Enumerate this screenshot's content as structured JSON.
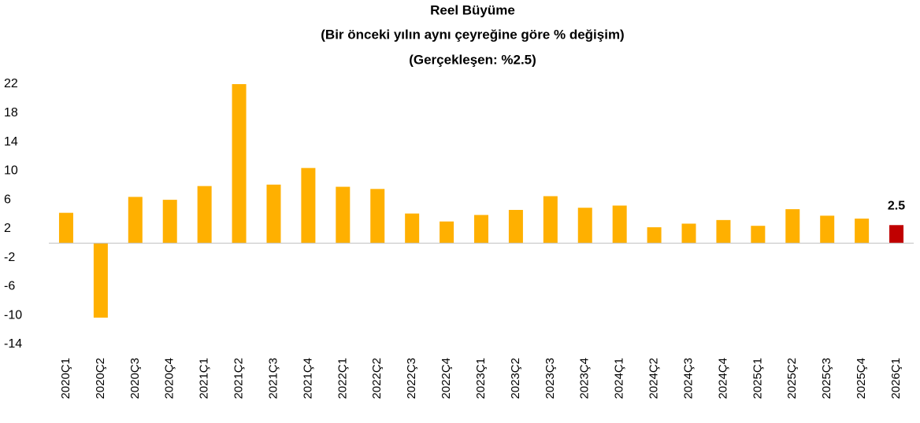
{
  "chart_data": {
    "type": "bar",
    "title": [
      "Reel Büyüme",
      "(Bir önceki yılın aynı çeyreğine göre % değişim)",
      "(Gerçekleşen: %2.5)"
    ],
    "categories": [
      "2020Ç1",
      "2020Ç2",
      "2020Ç3",
      "2020Ç4",
      "2021Ç1",
      "2021Ç2",
      "2021Ç3",
      "2021Ç4",
      "2022Ç1",
      "2022Ç2",
      "2022Ç3",
      "2022Ç4",
      "2023Ç1",
      "2023Ç2",
      "2023Ç3",
      "2023Ç4",
      "2024Ç1",
      "2024Ç2",
      "2024Ç3",
      "2024Ç4",
      "2025Ç1",
      "2025Ç2",
      "2025Ç3",
      "2025Ç4",
      "2026Ç1"
    ],
    "values": [
      4.2,
      -10.3,
      6.4,
      6.0,
      7.9,
      22.0,
      8.1,
      10.4,
      7.8,
      7.5,
      4.1,
      3.0,
      3.9,
      4.6,
      6.5,
      4.9,
      5.2,
      2.2,
      2.7,
      3.2,
      2.4,
      4.7,
      3.8,
      3.4,
      2.5
    ],
    "colors": [
      "#ffb000",
      "#ffb000",
      "#ffb000",
      "#ffb000",
      "#ffb000",
      "#ffb000",
      "#ffb000",
      "#ffb000",
      "#ffb000",
      "#ffb000",
      "#ffb000",
      "#ffb000",
      "#ffb000",
      "#ffb000",
      "#ffb000",
      "#ffb000",
      "#ffb000",
      "#ffb000",
      "#ffb000",
      "#ffb000",
      "#ffb000",
      "#ffb000",
      "#ffb000",
      "#ffb000",
      "#c00000"
    ],
    "value_labels": [
      null,
      null,
      null,
      null,
      null,
      null,
      null,
      null,
      null,
      null,
      null,
      null,
      null,
      null,
      null,
      null,
      null,
      null,
      null,
      null,
      null,
      null,
      null,
      null,
      "2.5"
    ],
    "ylim": [
      -14,
      22
    ],
    "yticks": [
      -14,
      -10,
      -6,
      -2,
      2,
      6,
      10,
      14,
      18,
      22
    ],
    "grid": false
  }
}
